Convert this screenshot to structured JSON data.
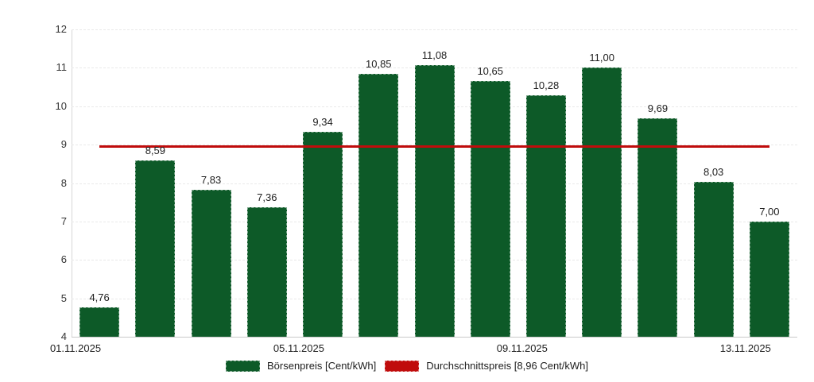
{
  "chart_data": {
    "type": "bar",
    "title": "",
    "series_label": "Börsenpreis [Cent/kWh]",
    "values": [
      4.76,
      8.59,
      7.83,
      7.36,
      9.34,
      10.85,
      11.08,
      10.65,
      10.28,
      11.0,
      9.69,
      8.03,
      7.0
    ],
    "value_labels": [
      "4,76",
      "8,59",
      "7,83",
      "7,36",
      "9,34",
      "10,85",
      "11,08",
      "10,65",
      "10,28",
      "11,00",
      "9,69",
      "8,03",
      "7,00"
    ],
    "x_ticks": [
      {
        "index": 0,
        "label": "01.11.2025"
      },
      {
        "index": 4,
        "label": "05.11.2025"
      },
      {
        "index": 8,
        "label": "09.11.2025"
      },
      {
        "index": 12,
        "label": "13.11.2025"
      }
    ],
    "y_ticks": [
      12,
      11,
      10,
      9,
      8,
      7,
      6,
      5,
      4
    ],
    "ylim": [
      4,
      12
    ],
    "average_line": {
      "value": 8.96,
      "label": "Durchschnittspreis [8,96 Cent/kWh]"
    },
    "colors": {
      "bar": "#0d5a28",
      "average_line": "#c00c0c",
      "grid": "#e9e9e9",
      "axis": "#c9c9c9",
      "text": "#212121"
    },
    "grid": true,
    "legend_position": "bottom"
  }
}
